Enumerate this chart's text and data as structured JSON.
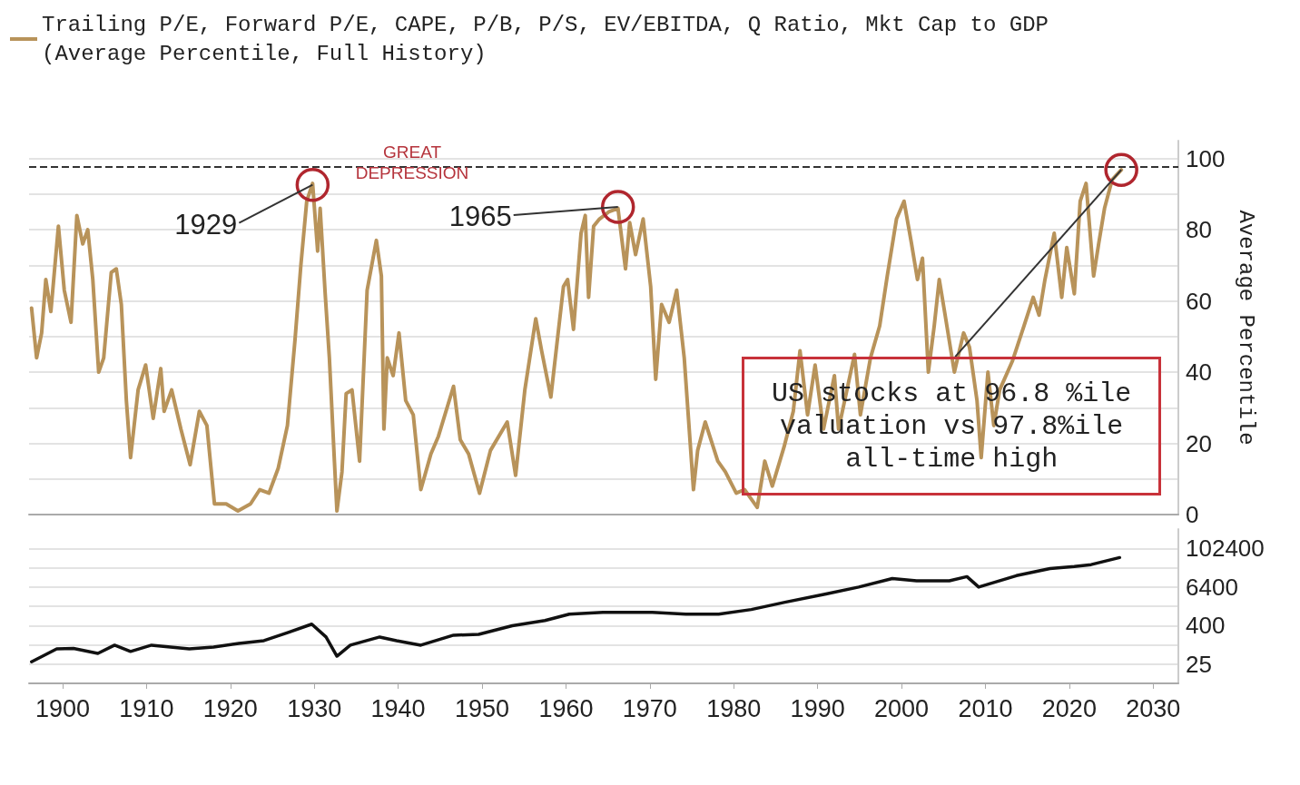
{
  "chart_data": [
    {
      "type": "line",
      "ylabel": "Average Percentile",
      "legend": "top left",
      "grid": "y",
      "line_style": "solid",
      "tick_labels": "y",
      "xlim": [
        1896,
        2033
      ],
      "ylim": [
        0,
        105
      ],
      "yticks": [
        0,
        {
          "value": 10,
          "label": null
        },
        20,
        {
          "value": 30,
          "label": null
        },
        40,
        {
          "value": 50,
          "label": null
        },
        60,
        {
          "value": 70,
          "label": null
        },
        80,
        {
          "value": 90,
          "label": null
        },
        100
      ],
      "ref_lines": [
        {
          "axis": "y",
          "value": 97.8,
          "color": "#333333",
          "line_style": "dashed"
        }
      ],
      "annotations": [
        "GREAT\nDEPRESSION",
        {
          "text": "1929",
          "x": 1929.8,
          "y": 92.6
        },
        {
          "text": "1965",
          "x": 1966.2,
          "y": 86.4
        },
        {
          "text": "US stocks at 96.8 %ile\nvaluation vs 97.8%ile\nall-time high",
          "x": 2026.2,
          "y": 96.8
        }
      ],
      "series": [
        {
          "name": "Trailing P/E, Forward P/E, CAPE, P/B, P/S, EV/EBITDA, Q Ratio, Mkt Cap to GDP\n(Average Percentile, Full History)",
          "color": "#b8935a",
          "x": [
            1896.3,
            1896.9,
            1897.5,
            1898.0,
            1898.6,
            1899.5,
            1900.2,
            1901.0,
            1901.7,
            1902.4,
            1903.0,
            1903.6,
            1904.3,
            1904.9,
            1905.8,
            1906.4,
            1907.0,
            1907.6,
            1908.1,
            1909.0,
            1909.9,
            1910.8,
            1911.7,
            1912.1,
            1913.0,
            1914.1,
            1915.2,
            1916.3,
            1917.2,
            1918.1,
            1919.5,
            1920.9,
            1922.4,
            1923.5,
            1924.6,
            1925.7,
            1926.8,
            1927.7,
            1928.4,
            1929.1,
            1929.8,
            1930.4,
            1930.7,
            1931.3,
            1931.8,
            1932.4,
            1932.7,
            1933.3,
            1933.8,
            1934.5,
            1935.4,
            1936.3,
            1937.4,
            1938.0,
            1938.3,
            1938.7,
            1939.4,
            1940.1,
            1940.9,
            1941.8,
            1942.7,
            1943.9,
            1944.8,
            1946.6,
            1947.4,
            1948.4,
            1949.7,
            1951.0,
            1953.0,
            1954.0,
            1955.1,
            1956.4,
            1957.1,
            1958.2,
            1959.7,
            1960.2,
            1960.9,
            1961.8,
            1962.3,
            1962.7,
            1963.3,
            1964.0,
            1965.1,
            1966.2,
            1967.1,
            1967.6,
            1968.3,
            1969.2,
            1970.1,
            1970.7,
            1971.4,
            1972.3,
            1973.2,
            1974.1,
            1975.2,
            1975.7,
            1976.6,
            1978.1,
            1979.0,
            1980.3,
            1981.3,
            1982.8,
            1983.7,
            1984.6,
            1986.0,
            1987.1,
            1987.9,
            1988.8,
            1989.7,
            1990.7,
            1992.0,
            1992.5,
            1994.4,
            1995.1,
            1996.3,
            1997.4,
            1998.3,
            1999.4,
            2000.3,
            2001.2,
            2001.9,
            2002.5,
            2003.2,
            2003.9,
            2004.5,
            2005.2,
            2006.3,
            2007.4,
            2008.1,
            2009.0,
            2009.5,
            2010.3,
            2011.0,
            2011.7,
            2013.2,
            2014.6,
            2015.7,
            2016.4,
            2017.1,
            2018.2,
            2019.1,
            2019.7,
            2020.6,
            2021.3,
            2022.0,
            2022.9,
            2023.5,
            2024.2,
            2025.1,
            2026.2
          ],
          "values": [
            58,
            44,
            51,
            66,
            57,
            81,
            63,
            54,
            84,
            76,
            80,
            66,
            40,
            44,
            68,
            69,
            59,
            32,
            16,
            35,
            42,
            27,
            41,
            29,
            35,
            24,
            14,
            29,
            25,
            3,
            3,
            1,
            3,
            7,
            6,
            13,
            25,
            49,
            70,
            88,
            93,
            74,
            86,
            62,
            44,
            15,
            1,
            12,
            34,
            35,
            15,
            63,
            77,
            67,
            24,
            44,
            39,
            51,
            32,
            28,
            7,
            17,
            22,
            36,
            21,
            17,
            6,
            18,
            26,
            11,
            35,
            55,
            46,
            33,
            64,
            66,
            52,
            79,
            84,
            61,
            81,
            83,
            85,
            86,
            69,
            82,
            73,
            83,
            64,
            38,
            59,
            54,
            63,
            44,
            7,
            18,
            26,
            15,
            12,
            6,
            7,
            2,
            15,
            8,
            19,
            29,
            46,
            28,
            42,
            24,
            39,
            24,
            45,
            28,
            44,
            53,
            67,
            83,
            88,
            76,
            66,
            72,
            40,
            53,
            66,
            56,
            40,
            51,
            47,
            32,
            16,
            40,
            25,
            35,
            43,
            53,
            61,
            56,
            66,
            79,
            61,
            75,
            62,
            88,
            93,
            67,
            76,
            86,
            94,
            96.8
          ]
        }
      ]
    },
    {
      "type": "line",
      "grid": "y",
      "line_style": "solid",
      "log": "y",
      "xlim": [
        1896,
        2033
      ],
      "xticks": [
        1900,
        1910,
        1920,
        1930,
        1940,
        1950,
        1960,
        1970,
        1980,
        1990,
        2000,
        2010,
        2020,
        2030
      ],
      "ylim": [
        6.4,
        409600
      ],
      "yticks": [
        25,
        {
          "value": 100,
          "label": null
        },
        400,
        {
          "value": 1600,
          "label": null
        },
        6400,
        {
          "value": 25600,
          "label": null
        },
        102400
      ],
      "series": [
        {
          "color": "#111111",
          "x": [
            1896.3,
            1899.3,
            1901.3,
            1904.2,
            1906.2,
            1908.1,
            1910.6,
            1915.1,
            1918.0,
            1921.0,
            1924.0,
            1926.9,
            1929.7,
            1931.4,
            1932.7,
            1934.3,
            1937.8,
            1939.8,
            1942.7,
            1946.6,
            1949.6,
            1953.6,
            1957.5,
            1960.4,
            1964.4,
            1970.3,
            1974.3,
            1978.2,
            1982.1,
            1986.1,
            1991.0,
            1994.9,
            1998.9,
            2001.8,
            2005.7,
            2007.8,
            2009.2,
            2013.7,
            2017.7,
            2020.6,
            2022.6,
            2026.0
          ],
          "values": [
            30,
            76,
            78,
            55,
            99,
            63,
            99,
            76,
            87,
            113,
            137,
            247,
            448,
            178,
            45,
            99,
            178,
            137,
            99,
            203,
            215,
            400,
            583,
            917,
            1050,
            1050,
            917,
            917,
            1280,
            2150,
            3900,
            6400,
            11800,
            10000,
            10000,
            13500,
            6400,
            14500,
            24000,
            28000,
            32000,
            53000
          ]
        }
      ]
    }
  ]
}
